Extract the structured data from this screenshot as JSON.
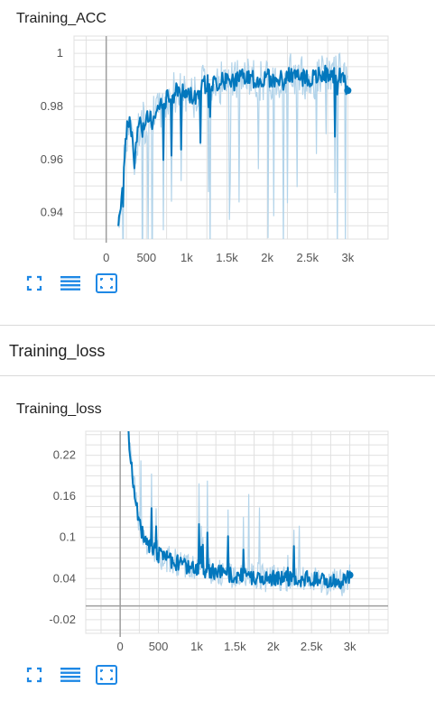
{
  "colors": {
    "accent": "#0277bd",
    "raw": "#b3d4ea",
    "grid": "#e0e0e0",
    "axis": "#9e9e9e",
    "icon": "#1e88e5"
  },
  "cards": [
    {
      "title": "Training_ACC"
    },
    {
      "title": "Training_loss"
    }
  ],
  "section": {
    "title": "Training_loss"
  },
  "toolbar_icons": [
    "expand-icon",
    "data-table-icon",
    "fit-domain-icon"
  ],
  "chart_data": [
    {
      "type": "line",
      "title": "Training_ACC",
      "xlabel": "",
      "ylabel": "",
      "xlim": [
        -400,
        3500
      ],
      "ylim": [
        0.93,
        1.0065
      ],
      "xticks": [
        0,
        500,
        1000,
        1500,
        2000,
        2500,
        3000
      ],
      "xtick_labels": [
        "0",
        "500",
        "1k",
        "1.5k",
        "2k",
        "2.5k",
        "3k"
      ],
      "yticks": [
        0.94,
        0.96,
        0.98,
        1.0
      ],
      "ytick_labels": [
        "0.94",
        "0.96",
        "0.98",
        "1"
      ],
      "grid": true,
      "series": [
        {
          "x": [
            150,
            200,
            250,
            300,
            350,
            400,
            500,
            600,
            700,
            800,
            900,
            1000,
            1100,
            1200,
            1300,
            1400,
            1500,
            1600,
            1700,
            1800,
            1900,
            2000,
            2100,
            2200,
            2300,
            2400,
            2500,
            2600,
            2700,
            2800,
            2900,
            3000
          ],
          "y": [
            0.932,
            0.952,
            0.97,
            0.975,
            0.958,
            0.972,
            0.975,
            0.976,
            0.981,
            0.984,
            0.986,
            0.985,
            0.984,
            0.988,
            0.989,
            0.989,
            0.99,
            0.989,
            0.991,
            0.99,
            0.99,
            0.991,
            0.99,
            0.991,
            0.992,
            0.991,
            0.99,
            0.991,
            0.993,
            0.991,
            0.992,
            0.986
          ]
        }
      ]
    },
    {
      "type": "line",
      "title": "Training_loss",
      "xlabel": "",
      "ylabel": "",
      "xlim": [
        -450,
        3500
      ],
      "ylim": [
        -0.04,
        0.255
      ],
      "xticks": [
        0,
        500,
        1000,
        1500,
        2000,
        2500,
        3000
      ],
      "xtick_labels": [
        "0",
        "500",
        "1k",
        "1.5k",
        "2k",
        "2.5k",
        "3k"
      ],
      "yticks": [
        -0.02,
        0.04,
        0.1,
        0.16,
        0.22
      ],
      "ytick_labels": [
        "-0.02",
        "0.04",
        "0.1",
        "0.16",
        "0.22"
      ],
      "grid": true,
      "series": [
        {
          "x": [
            100,
            150,
            200,
            250,
            300,
            350,
            400,
            500,
            600,
            700,
            800,
            900,
            1000,
            1100,
            1200,
            1300,
            1400,
            1500,
            1600,
            1700,
            1800,
            1900,
            2000,
            2100,
            2200,
            2300,
            2400,
            2500,
            2600,
            2700,
            2800,
            2900,
            3000
          ],
          "y": [
            0.255,
            0.2,
            0.16,
            0.12,
            0.1,
            0.09,
            0.085,
            0.075,
            0.07,
            0.065,
            0.06,
            0.058,
            0.055,
            0.052,
            0.05,
            0.048,
            0.046,
            0.045,
            0.044,
            0.042,
            0.043,
            0.04,
            0.042,
            0.04,
            0.041,
            0.039,
            0.04,
            0.038,
            0.037,
            0.036,
            0.034,
            0.033,
            0.045
          ]
        }
      ]
    }
  ]
}
